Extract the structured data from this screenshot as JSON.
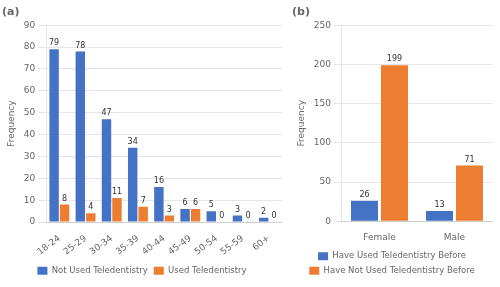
{
  "chart_data": [
    {
      "type": "bar",
      "title": "(a)",
      "categories": [
        "18-24",
        "25-29",
        "30-34",
        "35-39",
        "40-44",
        "45-49",
        "50-54",
        "55-59",
        "60+"
      ],
      "series": [
        {
          "name": "Not Used Teledentistry",
          "color": "#4472C4",
          "values": [
            79,
            78,
            47,
            34,
            16,
            6,
            5,
            3,
            2
          ]
        },
        {
          "name": "Used Teledentistry",
          "color": "#ED7D31",
          "values": [
            8,
            4,
            11,
            7,
            3,
            6,
            0,
            0,
            0
          ]
        }
      ],
      "ylabel": "Frequency",
      "ylim": [
        0,
        90
      ],
      "yticks": [
        0,
        10,
        20,
        30,
        40,
        50,
        60,
        70,
        80,
        90
      ],
      "grid": true,
      "data_labels": true,
      "legend": "bottom"
    },
    {
      "type": "bar",
      "title": "(b)",
      "categories": [
        "Female",
        "Male"
      ],
      "series": [
        {
          "name": "Have Used Teledentistry Before",
          "color": "#4472C4",
          "values": [
            26,
            13
          ]
        },
        {
          "name": "Have Not Used Teledentistry Before",
          "color": "#ED7D31",
          "values": [
            199,
            71
          ]
        }
      ],
      "ylabel": "Frequency",
      "ylim": [
        0,
        250
      ],
      "yticks": [
        0,
        50,
        100,
        150,
        200,
        250
      ],
      "grid": true,
      "data_labels": true,
      "legend": "bottom"
    }
  ]
}
